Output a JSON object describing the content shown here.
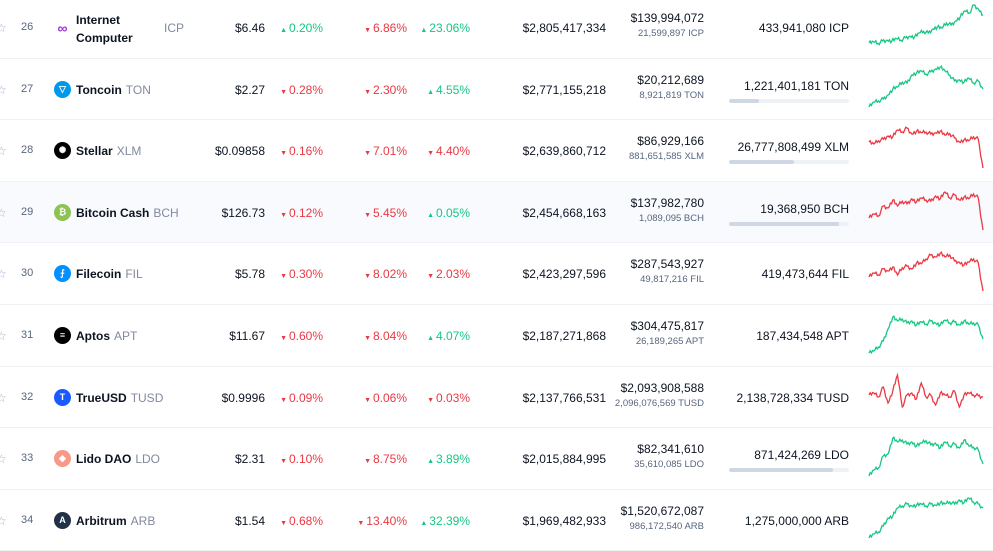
{
  "colors": {
    "up": "#16c784",
    "down": "#ea3943"
  },
  "rows": [
    {
      "rank": "26",
      "name": "Internet Computer",
      "symbol": "ICP",
      "icon": "icp-logo-icon",
      "icon_color": "#ffffff",
      "price": "$6.46",
      "h1": "0.20%",
      "h1_dir": "up",
      "h24": "6.86%",
      "h24_dir": "down",
      "d7": "23.06%",
      "d7_dir": "up",
      "market_cap": "$2,805,417,334",
      "volume": "$139,994,072",
      "volume_sub": "21,599,897 ICP",
      "supply": "433,941,080 ICP",
      "supply_pct": null,
      "spark_dir": "up",
      "spark": [
        0.05,
        0.08,
        0.04,
        0.1,
        0.12,
        0.1,
        0.16,
        0.12,
        0.18,
        0.22,
        0.2,
        0.3,
        0.34,
        0.3,
        0.4,
        0.45,
        0.42,
        0.55,
        0.5,
        0.6,
        0.7,
        0.85,
        0.8,
        1.0,
        0.9,
        0.75
      ]
    },
    {
      "rank": "27",
      "name": "Toncoin",
      "symbol": "TON",
      "icon": "toncoin-icon",
      "icon_color": "#0098ea",
      "price": "$2.27",
      "h1": "0.28%",
      "h1_dir": "down",
      "h24": "2.30%",
      "h24_dir": "down",
      "d7": "4.55%",
      "d7_dir": "up",
      "market_cap": "$2,771,155,218",
      "volume": "$20,212,689",
      "volume_sub": "8,921,819 TON",
      "supply": "1,221,401,181 TON",
      "supply_pct": 25,
      "spark_dir": "up",
      "spark": [
        0.0,
        0.12,
        0.15,
        0.2,
        0.3,
        0.45,
        0.5,
        0.62,
        0.6,
        0.8,
        0.85,
        0.9,
        0.82,
        0.88,
        0.95,
        1.0,
        0.9,
        0.8,
        0.65,
        0.68,
        0.62,
        0.72,
        0.6,
        0.65,
        0.45
      ]
    },
    {
      "rank": "28",
      "name": "Stellar",
      "symbol": "XLM",
      "icon": "stellar-icon",
      "icon_color": "#000000",
      "price": "$0.09858",
      "h1": "0.16%",
      "h1_dir": "down",
      "h24": "7.01%",
      "h24_dir": "down",
      "d7": "4.40%",
      "d7_dir": "down",
      "market_cap": "$2,639,860,712",
      "volume": "$86,929,166",
      "volume_sub": "881,651,585 XLM",
      "supply": "26,777,808,499 XLM",
      "supply_pct": 54,
      "spark_dir": "down",
      "spark": [
        0.65,
        0.6,
        0.68,
        0.72,
        0.8,
        0.78,
        0.95,
        0.9,
        1.0,
        0.85,
        0.92,
        0.88,
        0.9,
        0.85,
        0.88,
        0.92,
        0.82,
        0.86,
        0.75,
        0.65,
        0.7,
        0.68,
        0.78,
        0.72,
        0.0
      ]
    },
    {
      "rank": "29",
      "name": "Bitcoin Cash",
      "symbol": "BCH",
      "icon": "bitcoin-cash-icon",
      "icon_color": "#8dc351",
      "price": "$126.73",
      "h1": "0.12%",
      "h1_dir": "down",
      "h24": "5.45%",
      "h24_dir": "down",
      "d7": "0.05%",
      "d7_dir": "up",
      "market_cap": "$2,454,668,163",
      "volume": "$137,982,780",
      "volume_sub": "1,089,095 BCH",
      "supply": "19,368,950 BCH",
      "supply_pct": 92,
      "spark_dir": "down",
      "spark": [
        0.3,
        0.4,
        0.35,
        0.6,
        0.55,
        0.75,
        0.6,
        0.72,
        0.65,
        0.78,
        0.7,
        0.8,
        0.75,
        0.72,
        0.85,
        0.78,
        0.95,
        0.8,
        0.88,
        0.75,
        0.82,
        0.78,
        0.9,
        0.8,
        0.0
      ]
    },
    {
      "rank": "30",
      "name": "Filecoin",
      "symbol": "FIL",
      "icon": "filecoin-icon",
      "icon_color": "#0090ff",
      "price": "$5.78",
      "h1": "0.30%",
      "h1_dir": "down",
      "h24": "8.02%",
      "h24_dir": "down",
      "d7": "2.03%",
      "d7_dir": "down",
      "market_cap": "$2,423,297,596",
      "volume": "$287,543,927",
      "volume_sub": "49,817,216 FIL",
      "supply": "419,473,644 FIL",
      "supply_pct": null,
      "spark_dir": "down",
      "spark": [
        0.35,
        0.45,
        0.4,
        0.55,
        0.5,
        0.6,
        0.4,
        0.58,
        0.62,
        0.55,
        0.7,
        0.68,
        0.8,
        0.9,
        0.85,
        0.95,
        0.85,
        0.9,
        0.75,
        0.72,
        0.65,
        0.72,
        0.8,
        0.7,
        0.0
      ]
    },
    {
      "rank": "31",
      "name": "Aptos",
      "symbol": "APT",
      "icon": "aptos-icon",
      "icon_color": "#000000",
      "price": "$11.67",
      "h1": "0.60%",
      "h1_dir": "down",
      "h24": "8.04%",
      "h24_dir": "down",
      "d7": "4.07%",
      "d7_dir": "up",
      "market_cap": "$2,187,271,868",
      "volume": "$304,475,817",
      "volume_sub": "26,189,265 APT",
      "supply": "187,434,548 APT",
      "supply_pct": null,
      "spark_dir": "up",
      "spark": [
        0.0,
        0.05,
        0.15,
        0.3,
        0.6,
        0.9,
        0.8,
        0.85,
        0.75,
        0.8,
        0.7,
        0.78,
        0.72,
        0.8,
        0.75,
        0.7,
        0.82,
        0.75,
        0.78,
        0.7,
        0.8,
        0.72,
        0.75,
        0.7,
        0.35
      ]
    },
    {
      "rank": "32",
      "name": "TrueUSD",
      "symbol": "TUSD",
      "icon": "trueusd-icon",
      "icon_color": "#1a5aff",
      "price": "$0.9996",
      "h1": "0.09%",
      "h1_dir": "down",
      "h24": "0.06%",
      "h24_dir": "down",
      "d7": "0.03%",
      "d7_dir": "down",
      "market_cap": "$2,137,766,531",
      "volume": "$2,093,908,588",
      "volume_sub": "2,096,076,569 TUSD",
      "supply": "2,138,728,334 TUSD",
      "supply_pct": null,
      "spark_dir": "down",
      "spark": [
        0.5,
        0.55,
        0.45,
        0.7,
        0.3,
        0.6,
        1.0,
        0.2,
        0.5,
        0.55,
        0.4,
        0.8,
        0.45,
        0.5,
        0.25,
        0.55,
        0.5,
        0.45,
        0.6,
        0.2,
        0.5,
        0.55,
        0.5,
        0.48,
        0.45
      ]
    },
    {
      "rank": "33",
      "name": "Lido DAO",
      "symbol": "LDO",
      "icon": "lido-dao-icon",
      "icon_color": "#f69988",
      "price": "$2.31",
      "h1": "0.10%",
      "h1_dir": "down",
      "h24": "8.75%",
      "h24_dir": "down",
      "d7": "3.89%",
      "d7_dir": "up",
      "market_cap": "$2,015,884,995",
      "volume": "$82,341,610",
      "volume_sub": "35,610,085 LDO",
      "supply": "871,424,269 LDO",
      "supply_pct": 87,
      "spark_dir": "up",
      "spark": [
        0.0,
        0.15,
        0.2,
        0.5,
        0.55,
        0.95,
        0.85,
        0.9,
        0.8,
        0.85,
        0.75,
        0.82,
        0.88,
        0.78,
        0.82,
        0.7,
        0.85,
        0.75,
        0.8,
        0.7,
        0.9,
        0.75,
        0.72,
        0.65,
        0.3
      ]
    },
    {
      "rank": "34",
      "name": "Arbitrum",
      "symbol": "ARB",
      "icon": "arbitrum-icon",
      "icon_color": "#213147",
      "price": "$1.54",
      "h1": "0.68%",
      "h1_dir": "down",
      "h24": "13.40%",
      "h24_dir": "down",
      "d7": "32.39%",
      "d7_dir": "up",
      "market_cap": "$1,969,482,933",
      "volume": "$1,520,672,087",
      "volume_sub": "986,172,540 ARB",
      "supply": "1,275,000,000 ARB",
      "supply_pct": null,
      "spark_dir": "up",
      "spark": [
        0.0,
        0.1,
        0.15,
        0.3,
        0.5,
        0.55,
        0.75,
        0.8,
        0.85,
        0.8,
        0.82,
        0.85,
        0.8,
        0.85,
        0.82,
        0.88,
        0.85,
        0.9,
        0.85,
        0.95,
        0.88,
        1.0,
        0.9,
        0.85,
        0.75
      ]
    }
  ]
}
